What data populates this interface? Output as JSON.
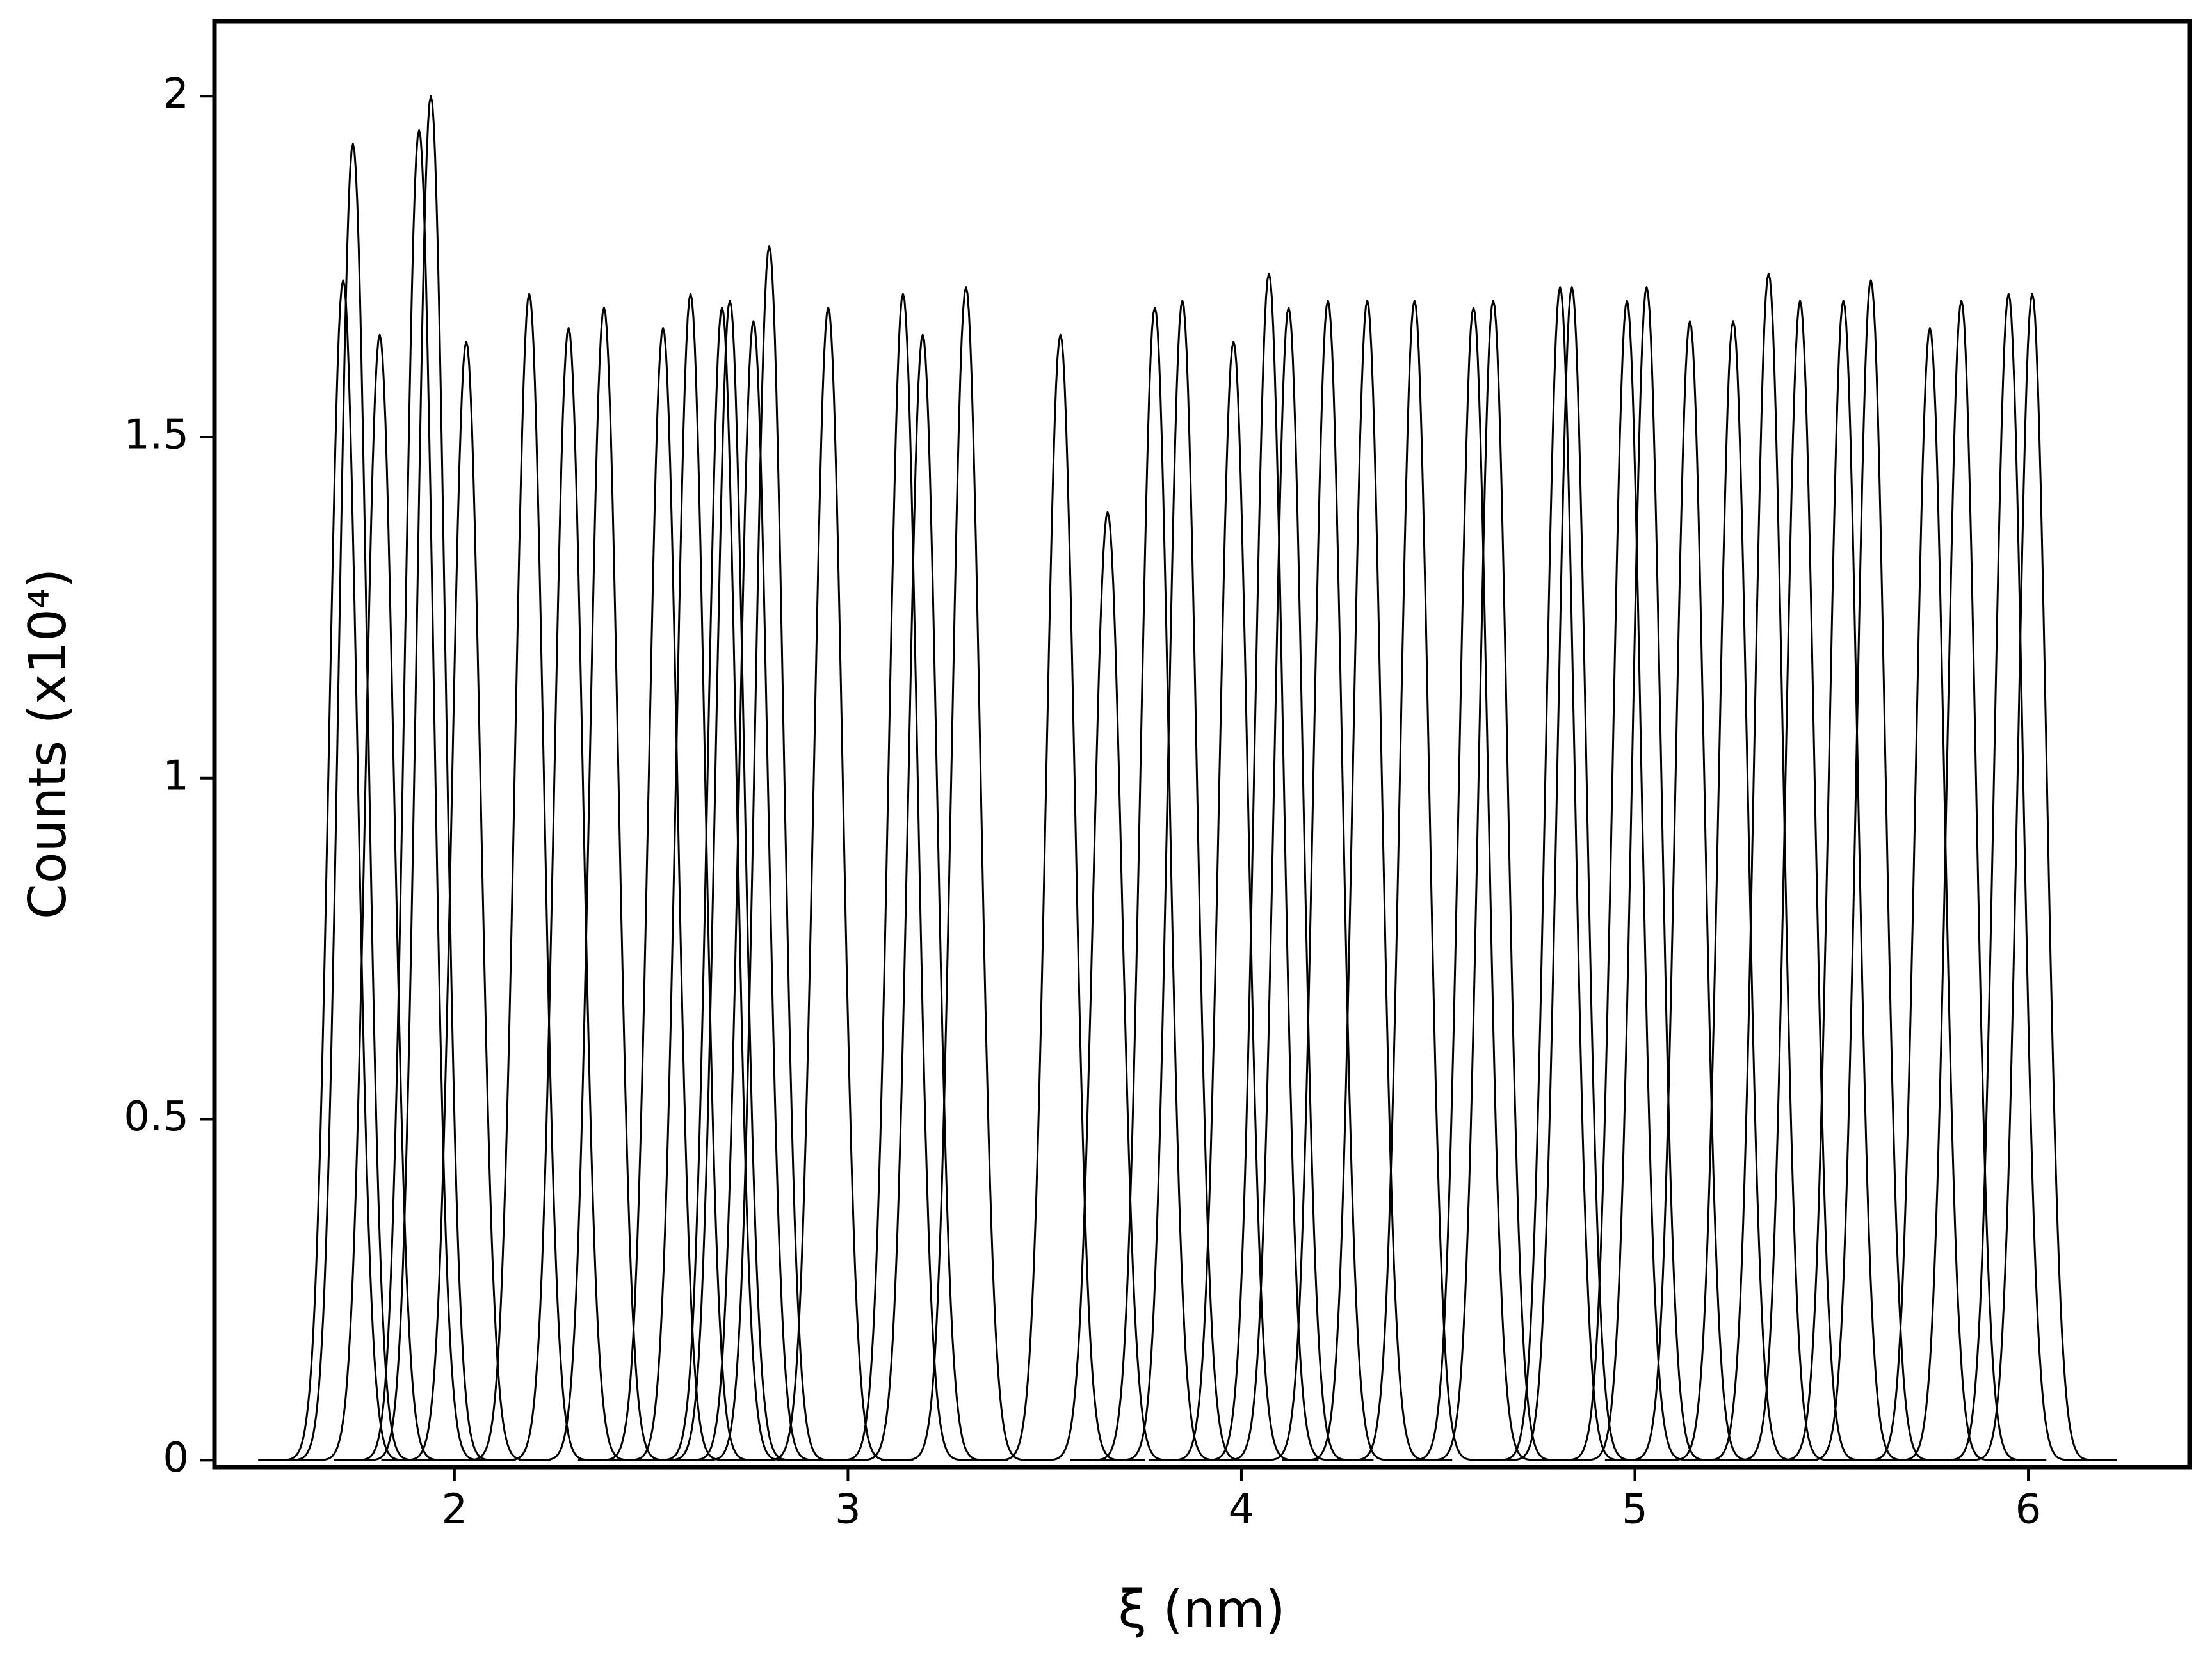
{
  "chart_data": {
    "type": "peaks",
    "xlabel": "ξ (nm)",
    "ylabel": "Counts (x10⁴)",
    "xlim": [
      1.39,
      6.41
    ],
    "ylim": [
      -0.01,
      2.11
    ],
    "xticks": [
      2,
      3,
      4,
      5,
      6
    ],
    "yticks": [
      0,
      0.5,
      1,
      1.5,
      2
    ],
    "color": "#000000",
    "peak_width": 0.036,
    "series": [
      {
        "center": 1.717,
        "peak": 1.73
      },
      {
        "center": 1.742,
        "peak": 1.93
      },
      {
        "center": 1.81,
        "peak": 1.65
      },
      {
        "center": 1.91,
        "peak": 1.95
      },
      {
        "center": 1.94,
        "peak": 2.0
      },
      {
        "center": 2.03,
        "peak": 1.64
      },
      {
        "center": 2.19,
        "peak": 1.71
      },
      {
        "center": 2.29,
        "peak": 1.66
      },
      {
        "center": 2.38,
        "peak": 1.69
      },
      {
        "center": 2.53,
        "peak": 1.66
      },
      {
        "center": 2.6,
        "peak": 1.71
      },
      {
        "center": 2.68,
        "peak": 1.69
      },
      {
        "center": 2.7,
        "peak": 1.7
      },
      {
        "center": 2.76,
        "peak": 1.67
      },
      {
        "center": 2.8,
        "peak": 1.78
      },
      {
        "center": 2.95,
        "peak": 1.69
      },
      {
        "center": 3.14,
        "peak": 1.71
      },
      {
        "center": 3.19,
        "peak": 1.65
      },
      {
        "center": 3.3,
        "peak": 1.72
      },
      {
        "center": 3.54,
        "peak": 1.65
      },
      {
        "center": 3.66,
        "peak": 1.39
      },
      {
        "center": 3.78,
        "peak": 1.69
      },
      {
        "center": 3.85,
        "peak": 1.7
      },
      {
        "center": 3.98,
        "peak": 1.64
      },
      {
        "center": 4.07,
        "peak": 1.74
      },
      {
        "center": 4.12,
        "peak": 1.69
      },
      {
        "center": 4.22,
        "peak": 1.7
      },
      {
        "center": 4.32,
        "peak": 1.7
      },
      {
        "center": 4.44,
        "peak": 1.7
      },
      {
        "center": 4.59,
        "peak": 1.69
      },
      {
        "center": 4.64,
        "peak": 1.7
      },
      {
        "center": 4.81,
        "peak": 1.72
      },
      {
        "center": 4.84,
        "peak": 1.72
      },
      {
        "center": 4.98,
        "peak": 1.7
      },
      {
        "center": 5.03,
        "peak": 1.72
      },
      {
        "center": 5.14,
        "peak": 1.67
      },
      {
        "center": 5.25,
        "peak": 1.67
      },
      {
        "center": 5.34,
        "peak": 1.74
      },
      {
        "center": 5.42,
        "peak": 1.7
      },
      {
        "center": 5.53,
        "peak": 1.7
      },
      {
        "center": 5.6,
        "peak": 1.73
      },
      {
        "center": 5.75,
        "peak": 1.66
      },
      {
        "center": 5.83,
        "peak": 1.7
      },
      {
        "center": 5.95,
        "peak": 1.71
      },
      {
        "center": 6.01,
        "peak": 1.71
      }
    ]
  }
}
